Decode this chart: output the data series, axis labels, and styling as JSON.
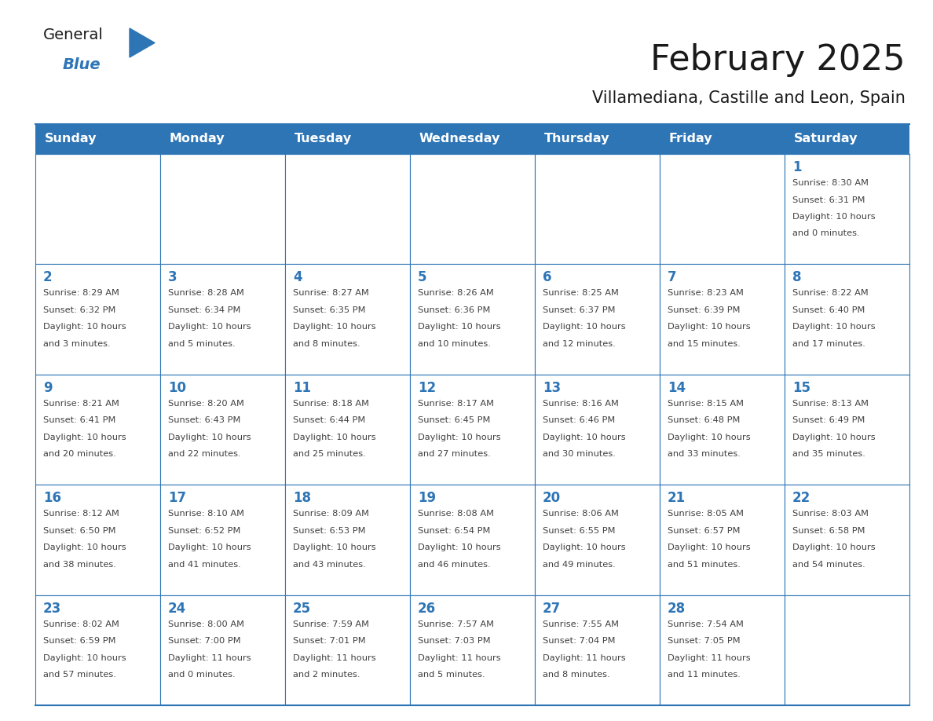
{
  "title": "February 2025",
  "subtitle": "Villamediana, Castille and Leon, Spain",
  "days_of_week": [
    "Sunday",
    "Monday",
    "Tuesday",
    "Wednesday",
    "Thursday",
    "Friday",
    "Saturday"
  ],
  "header_bg": "#2E75B6",
  "header_text": "#FFFFFF",
  "cell_bg": "#FFFFFF",
  "border_color": "#2E75B6",
  "title_color": "#1a1a1a",
  "subtitle_color": "#1a1a1a",
  "day_num_color": "#2E75B6",
  "cell_text_color": "#404040",
  "logo_general_color": "#1a1a1a",
  "logo_blue_color": "#2E75B6",
  "calendar": [
    [
      null,
      null,
      null,
      null,
      null,
      null,
      1
    ],
    [
      2,
      3,
      4,
      5,
      6,
      7,
      8
    ],
    [
      9,
      10,
      11,
      12,
      13,
      14,
      15
    ],
    [
      16,
      17,
      18,
      19,
      20,
      21,
      22
    ],
    [
      23,
      24,
      25,
      26,
      27,
      28,
      null
    ]
  ],
  "cell_data": {
    "1": {
      "sunrise": "8:30 AM",
      "sunset": "6:31 PM",
      "daylight_hours": 10,
      "daylight_minutes": 0
    },
    "2": {
      "sunrise": "8:29 AM",
      "sunset": "6:32 PM",
      "daylight_hours": 10,
      "daylight_minutes": 3
    },
    "3": {
      "sunrise": "8:28 AM",
      "sunset": "6:34 PM",
      "daylight_hours": 10,
      "daylight_minutes": 5
    },
    "4": {
      "sunrise": "8:27 AM",
      "sunset": "6:35 PM",
      "daylight_hours": 10,
      "daylight_minutes": 8
    },
    "5": {
      "sunrise": "8:26 AM",
      "sunset": "6:36 PM",
      "daylight_hours": 10,
      "daylight_minutes": 10
    },
    "6": {
      "sunrise": "8:25 AM",
      "sunset": "6:37 PM",
      "daylight_hours": 10,
      "daylight_minutes": 12
    },
    "7": {
      "sunrise": "8:23 AM",
      "sunset": "6:39 PM",
      "daylight_hours": 10,
      "daylight_minutes": 15
    },
    "8": {
      "sunrise": "8:22 AM",
      "sunset": "6:40 PM",
      "daylight_hours": 10,
      "daylight_minutes": 17
    },
    "9": {
      "sunrise": "8:21 AM",
      "sunset": "6:41 PM",
      "daylight_hours": 10,
      "daylight_minutes": 20
    },
    "10": {
      "sunrise": "8:20 AM",
      "sunset": "6:43 PM",
      "daylight_hours": 10,
      "daylight_minutes": 22
    },
    "11": {
      "sunrise": "8:18 AM",
      "sunset": "6:44 PM",
      "daylight_hours": 10,
      "daylight_minutes": 25
    },
    "12": {
      "sunrise": "8:17 AM",
      "sunset": "6:45 PM",
      "daylight_hours": 10,
      "daylight_minutes": 27
    },
    "13": {
      "sunrise": "8:16 AM",
      "sunset": "6:46 PM",
      "daylight_hours": 10,
      "daylight_minutes": 30
    },
    "14": {
      "sunrise": "8:15 AM",
      "sunset": "6:48 PM",
      "daylight_hours": 10,
      "daylight_minutes": 33
    },
    "15": {
      "sunrise": "8:13 AM",
      "sunset": "6:49 PM",
      "daylight_hours": 10,
      "daylight_minutes": 35
    },
    "16": {
      "sunrise": "8:12 AM",
      "sunset": "6:50 PM",
      "daylight_hours": 10,
      "daylight_minutes": 38
    },
    "17": {
      "sunrise": "8:10 AM",
      "sunset": "6:52 PM",
      "daylight_hours": 10,
      "daylight_minutes": 41
    },
    "18": {
      "sunrise": "8:09 AM",
      "sunset": "6:53 PM",
      "daylight_hours": 10,
      "daylight_minutes": 43
    },
    "19": {
      "sunrise": "8:08 AM",
      "sunset": "6:54 PM",
      "daylight_hours": 10,
      "daylight_minutes": 46
    },
    "20": {
      "sunrise": "8:06 AM",
      "sunset": "6:55 PM",
      "daylight_hours": 10,
      "daylight_minutes": 49
    },
    "21": {
      "sunrise": "8:05 AM",
      "sunset": "6:57 PM",
      "daylight_hours": 10,
      "daylight_minutes": 51
    },
    "22": {
      "sunrise": "8:03 AM",
      "sunset": "6:58 PM",
      "daylight_hours": 10,
      "daylight_minutes": 54
    },
    "23": {
      "sunrise": "8:02 AM",
      "sunset": "6:59 PM",
      "daylight_hours": 10,
      "daylight_minutes": 57
    },
    "24": {
      "sunrise": "8:00 AM",
      "sunset": "7:00 PM",
      "daylight_hours": 11,
      "daylight_minutes": 0
    },
    "25": {
      "sunrise": "7:59 AM",
      "sunset": "7:01 PM",
      "daylight_hours": 11,
      "daylight_minutes": 2
    },
    "26": {
      "sunrise": "7:57 AM",
      "sunset": "7:03 PM",
      "daylight_hours": 11,
      "daylight_minutes": 5
    },
    "27": {
      "sunrise": "7:55 AM",
      "sunset": "7:04 PM",
      "daylight_hours": 11,
      "daylight_minutes": 8
    },
    "28": {
      "sunrise": "7:54 AM",
      "sunset": "7:05 PM",
      "daylight_hours": 11,
      "daylight_minutes": 11
    }
  },
  "fig_width": 11.88,
  "fig_height": 9.18,
  "dpi": 100
}
